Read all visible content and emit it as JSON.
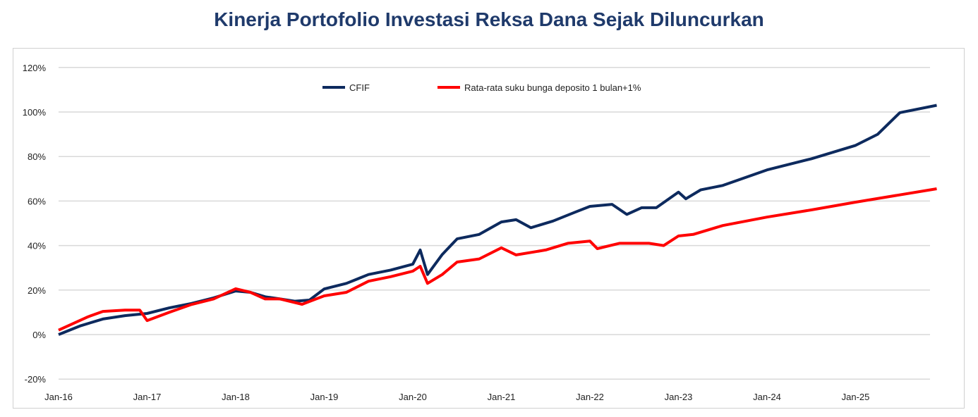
{
  "chart_data": {
    "type": "line",
    "title": "Kinerja Portofolio Investasi Reksa Dana Sejak Diluncurkan",
    "xlabel": "",
    "ylabel": "",
    "ylim": [
      -20,
      120
    ],
    "xlim": [
      "2016-01",
      "2025-12"
    ],
    "y_ticks": [
      "-20%",
      "0%",
      "20%",
      "40%",
      "60%",
      "80%",
      "100%",
      "120%"
    ],
    "x_ticks": [
      "Jan-16",
      "Jan-17",
      "Jan-18",
      "Jan-19",
      "Jan-20",
      "Jan-21",
      "Jan-22",
      "Jan-23",
      "Jan-24",
      "Jan-25"
    ],
    "grid": "horizontal",
    "legend": "top-center",
    "series": [
      {
        "name": "CFIF",
        "color": "#0d2a5e",
        "points": [
          [
            "2016-01",
            0
          ],
          [
            "2016-04",
            4
          ],
          [
            "2016-07",
            7
          ],
          [
            "2016-10",
            8.5
          ],
          [
            "2017-01",
            9.5
          ],
          [
            "2017-04",
            12
          ],
          [
            "2017-07",
            14
          ],
          [
            "2017-10",
            16.5
          ],
          [
            "2018-01",
            19.6
          ],
          [
            "2018-03",
            19
          ],
          [
            "2018-05",
            17
          ],
          [
            "2018-07",
            16
          ],
          [
            "2018-09",
            15
          ],
          [
            "2018-11",
            15.5
          ],
          [
            "2019-01",
            20.5
          ],
          [
            "2019-04",
            23
          ],
          [
            "2019-07",
            27
          ],
          [
            "2019-10",
            29
          ],
          [
            "2020-01",
            31.6
          ],
          [
            "2020-02",
            38
          ],
          [
            "2020-03",
            27
          ],
          [
            "2020-05",
            36
          ],
          [
            "2020-07",
            43
          ],
          [
            "2020-10",
            45
          ],
          [
            "2021-01",
            50.6
          ],
          [
            "2021-03",
            51.6
          ],
          [
            "2021-05",
            48
          ],
          [
            "2021-08",
            51
          ],
          [
            "2021-11",
            55
          ],
          [
            "2022-01",
            57.6
          ],
          [
            "2022-04",
            58.5
          ],
          [
            "2022-06",
            54
          ],
          [
            "2022-08",
            57
          ],
          [
            "2022-10",
            57
          ],
          [
            "2023-01",
            64
          ],
          [
            "2023-02",
            61
          ],
          [
            "2023-04",
            65
          ],
          [
            "2023-07",
            67
          ],
          [
            "2024-01",
            74
          ],
          [
            "2024-07",
            79
          ],
          [
            "2025-01",
            85
          ],
          [
            "2025-04",
            90
          ],
          [
            "2025-07",
            99.7
          ],
          [
            "2025-12",
            103
          ]
        ]
      },
      {
        "name": "Rata-rata suku bunga deposito 1 bulan+1%",
        "color": "#ff0000",
        "points": [
          [
            "2016-01",
            2
          ],
          [
            "2016-03",
            5
          ],
          [
            "2016-05",
            8
          ],
          [
            "2016-07",
            10.4
          ],
          [
            "2016-10",
            11
          ],
          [
            "2016-12",
            11
          ],
          [
            "2017-01",
            6.3
          ],
          [
            "2017-04",
            10
          ],
          [
            "2017-07",
            13.5
          ],
          [
            "2017-10",
            16
          ],
          [
            "2018-01",
            20.6
          ],
          [
            "2018-03",
            19
          ],
          [
            "2018-05",
            16
          ],
          [
            "2018-07",
            16
          ],
          [
            "2018-10",
            13.6
          ],
          [
            "2019-01",
            17.4
          ],
          [
            "2019-04",
            19
          ],
          [
            "2019-07",
            24
          ],
          [
            "2019-10",
            26
          ],
          [
            "2020-01",
            28.5
          ],
          [
            "2020-02",
            30.7
          ],
          [
            "2020-03",
            23
          ],
          [
            "2020-05",
            27
          ],
          [
            "2020-07",
            32.6
          ],
          [
            "2020-10",
            34
          ],
          [
            "2021-01",
            39
          ],
          [
            "2021-03",
            35.8
          ],
          [
            "2021-07",
            38
          ],
          [
            "2021-10",
            41
          ],
          [
            "2022-01",
            42
          ],
          [
            "2022-02",
            38.6
          ],
          [
            "2022-05",
            41
          ],
          [
            "2022-09",
            41
          ],
          [
            "2022-11",
            40
          ],
          [
            "2023-01",
            44.3
          ],
          [
            "2023-03",
            45
          ],
          [
            "2023-07",
            49
          ],
          [
            "2024-01",
            52.8
          ],
          [
            "2024-07",
            56
          ],
          [
            "2025-01",
            59.5
          ],
          [
            "2025-12",
            65.5
          ]
        ]
      }
    ]
  }
}
